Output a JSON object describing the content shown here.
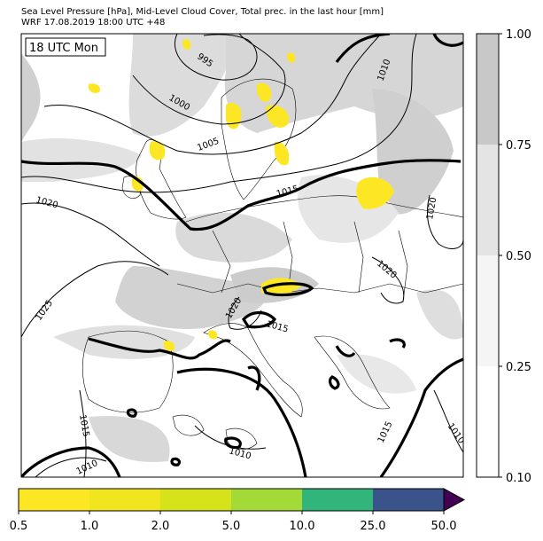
{
  "header": {
    "title_line1": "Sea Level Pressure [hPa], Mid-Level Cloud Cover, Total prec. in the last hour [mm]",
    "title_line2": "WRF 17.08.2019 18:00 UTC +48"
  },
  "map": {
    "time_box": "18 UTC Mon",
    "isobar_labels": [
      "995",
      "1000",
      "1005",
      "1010",
      "1015",
      "1020",
      "1020",
      "1020",
      "1025",
      "1020",
      "1015",
      "1015",
      "1015",
      "1010",
      "1010",
      "1010"
    ],
    "colors": {
      "land": "#ffffff",
      "cloud_light": "#eeeeee",
      "cloud_mid": "#d9d9d9",
      "cloud_dark": "#c8c8c8",
      "precip_yellow": "#fde725",
      "isobar": "#000000"
    }
  },
  "cloud_colorbar": {
    "ticks": [
      "1.00",
      "0.75",
      "0.50",
      "0.25",
      "0.10"
    ],
    "colors": [
      "#c8c8c8",
      "#e4e4e4",
      "#f5f5f5",
      "#ffffff"
    ]
  },
  "precip_colorbar": {
    "ticks": [
      "0.5",
      "1.0",
      "2.0",
      "5.0",
      "10.0",
      "25.0",
      "50.0"
    ],
    "colors": [
      "#fde725",
      "#f2e41f",
      "#d6e21a",
      "#a3da37",
      "#3bb878",
      "#2d8a78",
      "#3b4f8c",
      "#440154"
    ]
  }
}
